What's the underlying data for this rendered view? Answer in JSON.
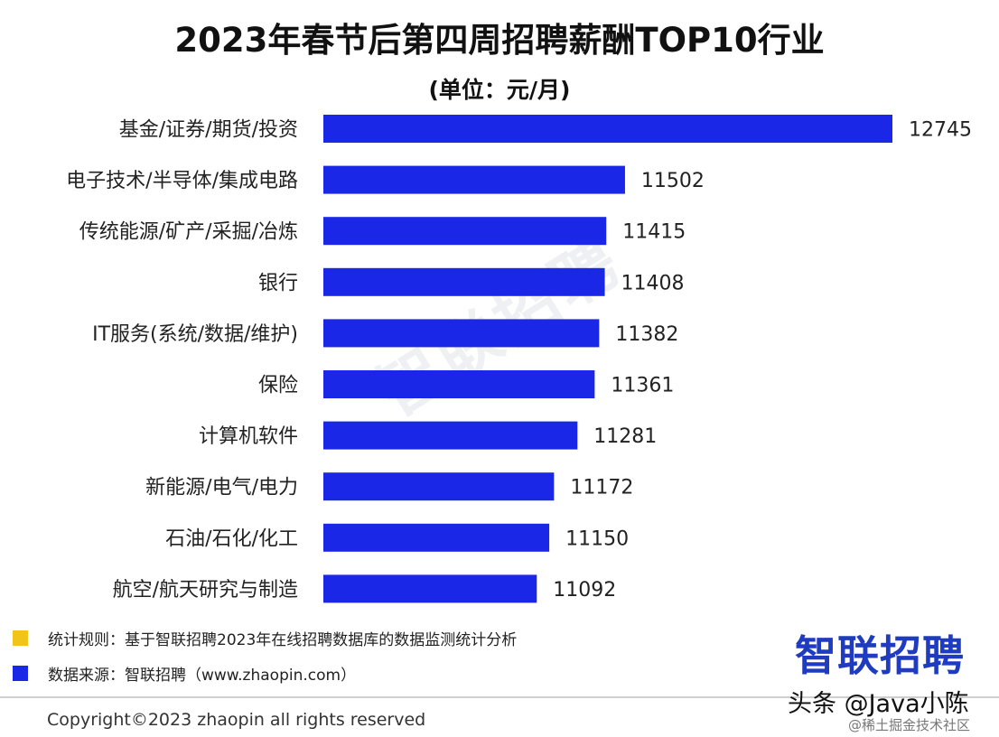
{
  "title": "2023年春节后第四周招聘薪酬TOP10行业",
  "subtitle": "(单位：元/月)",
  "chart_data": {
    "type": "bar",
    "orientation": "horizontal",
    "title": "2023年春节后第四周招聘薪酬TOP10行业",
    "subtitle": "(单位：元/月)",
    "categories": [
      "基金/证券/期货/投资",
      "电子技术/半导体/集成电路",
      "传统能源/矿产/采掘/冶炼",
      "银行",
      "IT服务(系统/数据/维护)",
      "保险",
      "计算机软件",
      "新能源/电气/电力",
      "石油/石化/化工",
      "航空/航天研究与制造"
    ],
    "values": [
      12745,
      11502,
      11415,
      11408,
      11382,
      11361,
      11281,
      11172,
      11150,
      11092
    ],
    "value_labels": [
      "12745",
      "11502",
      "11415",
      "11408",
      "11382",
      "11361",
      "11281",
      "11172",
      "11150",
      "11092"
    ],
    "axis_baseline": 10100,
    "xlim_max": 12745,
    "bar_color": "#1a27e6",
    "grid": false,
    "legend": "none"
  },
  "footnotes": {
    "rule": {
      "text": "统计规则：基于智联招聘2023年在线招聘数据库的数据监测统计分析",
      "color": "#f0c419"
    },
    "source": {
      "text": "数据来源：智联招聘（www.zhaopin.com）",
      "color": "#1a27e6"
    }
  },
  "brand_logo": "智联招聘",
  "watermark": "智联招聘",
  "copyright": "Copyright©2023 zhaopin all rights reserved",
  "overlay_watermark": "头条 @Java小陈",
  "overlay_sub": "@稀土掘金技术社区"
}
